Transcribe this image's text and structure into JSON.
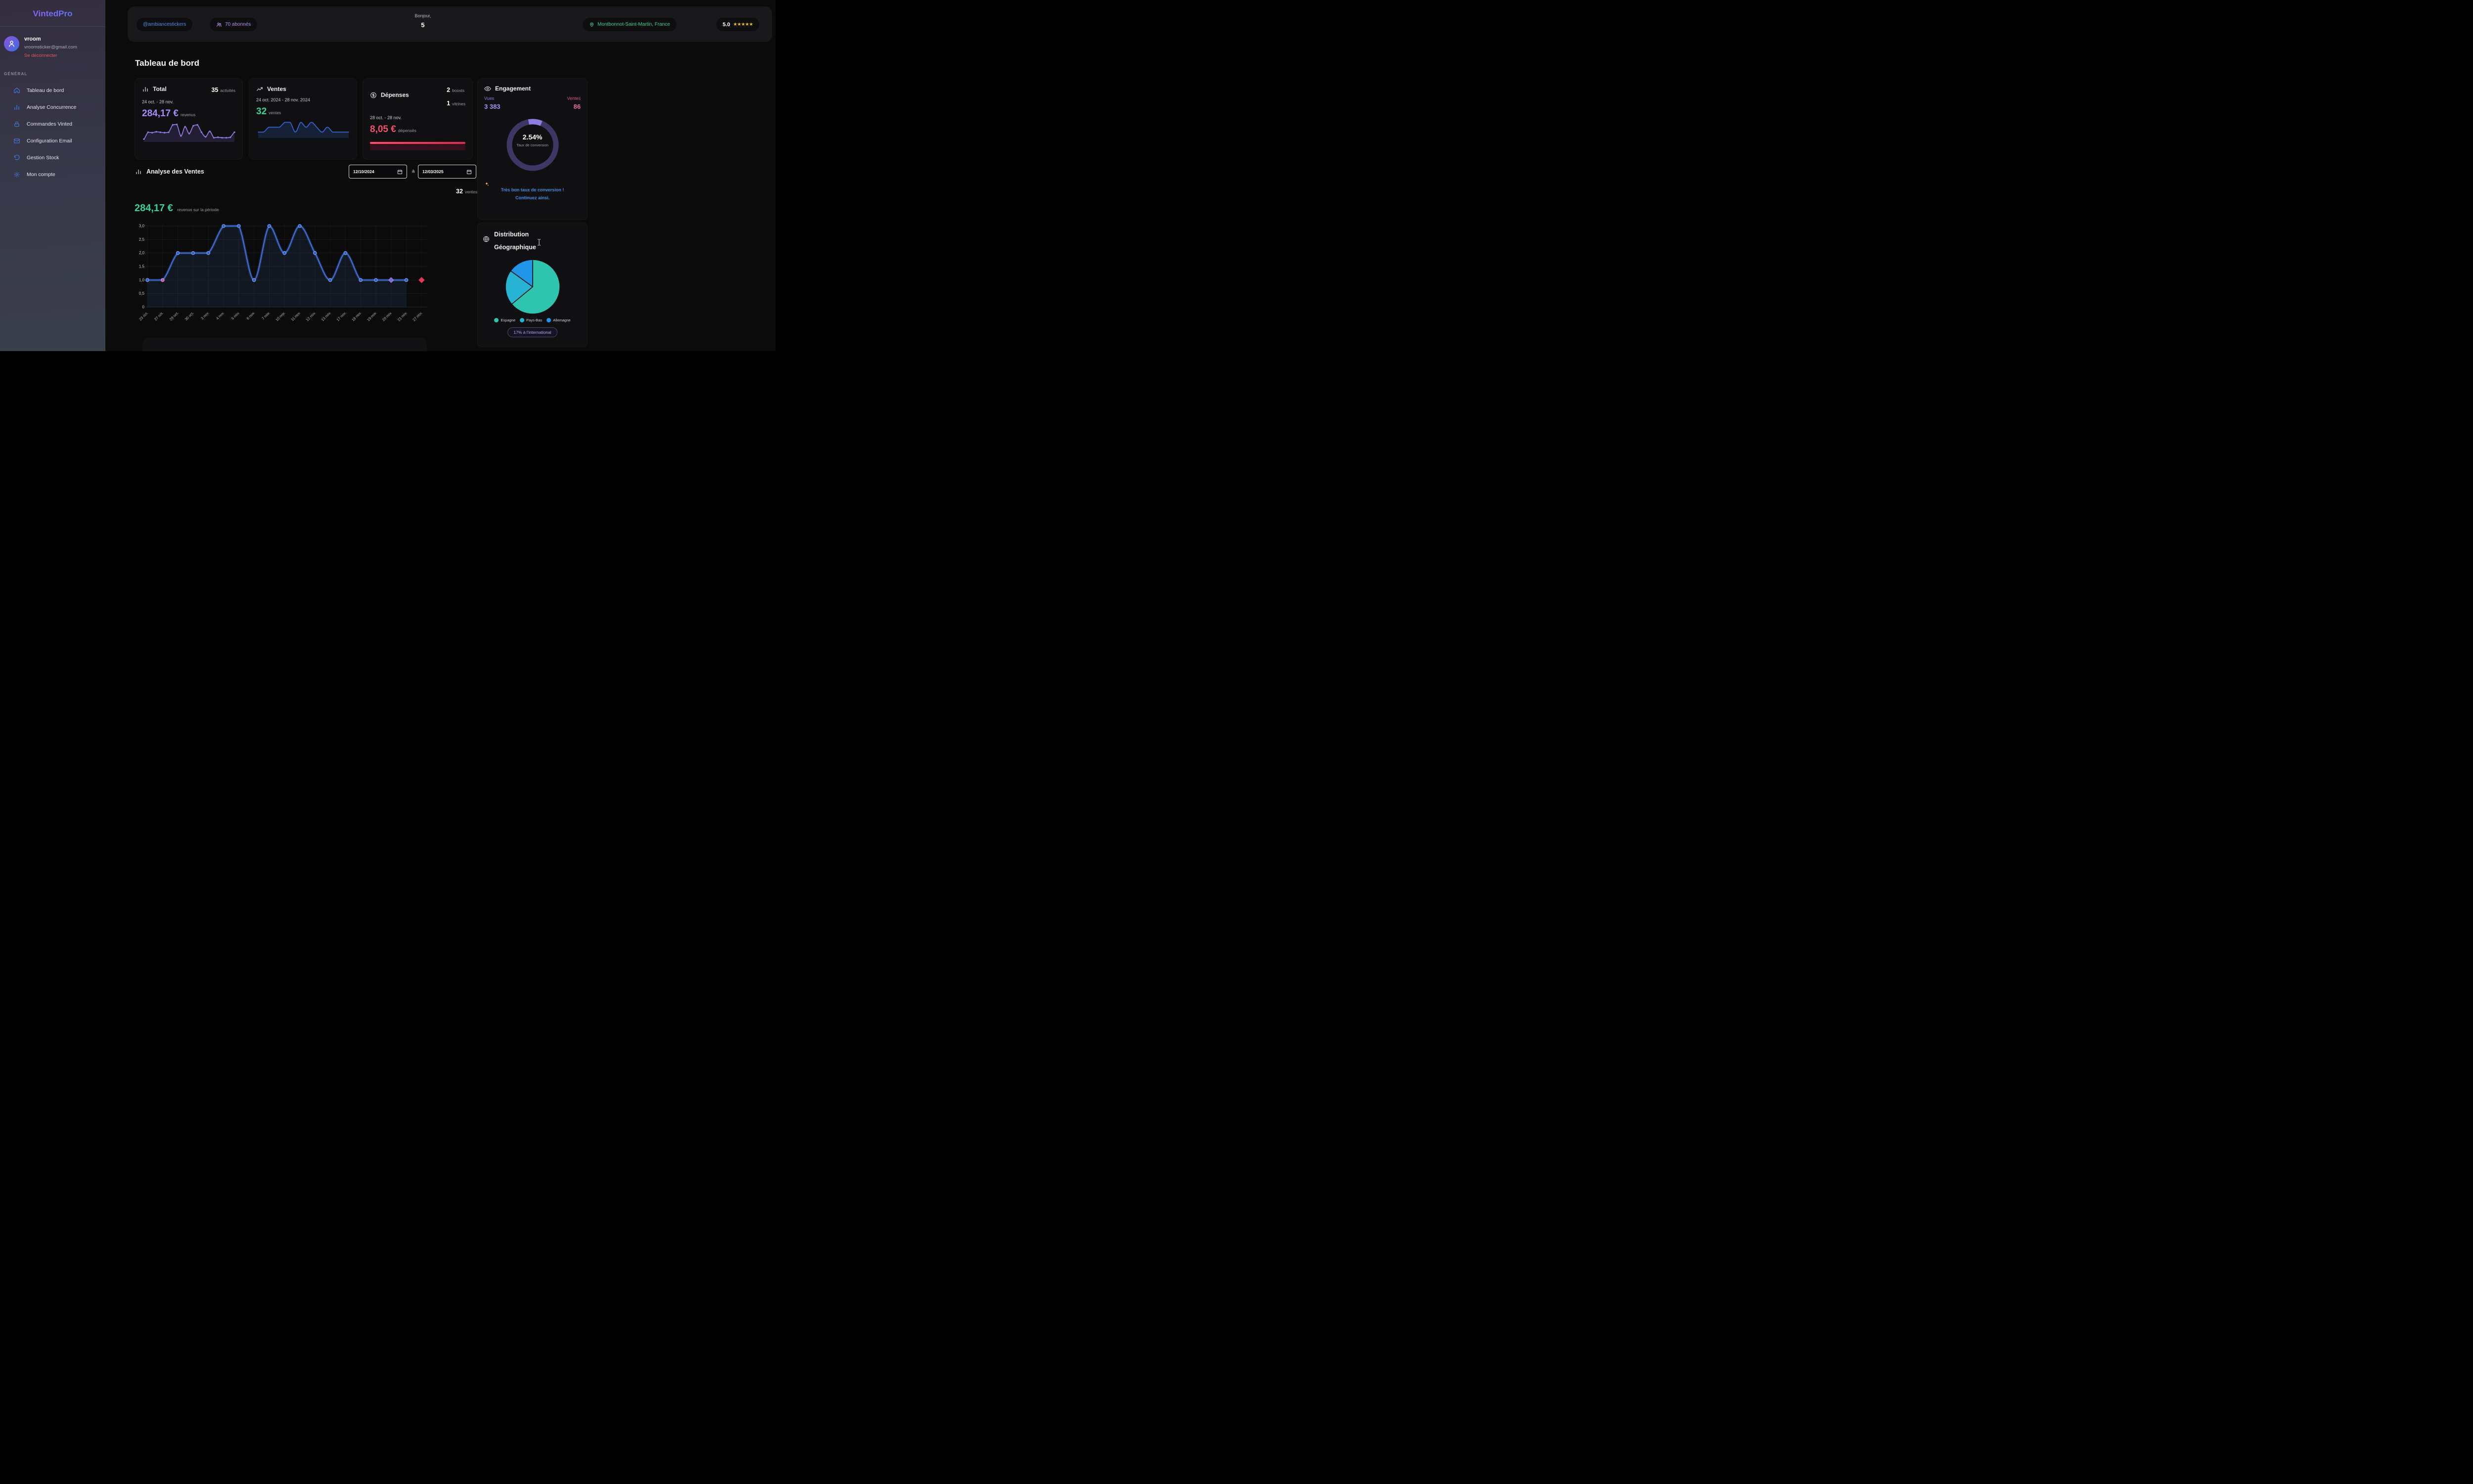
{
  "sidebar": {
    "logo": "VintedPro",
    "user": {
      "name": "vroom",
      "email": "vroomsticker@gmail.com",
      "logout_label": "Se déconnecter"
    },
    "section_label": "GÉNÉRAL",
    "items": [
      {
        "label": "Tableau de bord",
        "icon": "home"
      },
      {
        "label": "Analyse Concurrence",
        "icon": "bar-chart"
      },
      {
        "label": "Commandes Vinted",
        "icon": "lock"
      },
      {
        "label": "Configuration Email",
        "icon": "mail"
      },
      {
        "label": "Gestion Stock",
        "icon": "rotate"
      },
      {
        "label": "Mon compte",
        "icon": "gear"
      }
    ]
  },
  "header": {
    "handle": "@ambiancestickers",
    "followers": "70 abonnés",
    "greeting_label": "Bonjour,",
    "greeting_value": "5",
    "location": "Montbonnot-Saint-Martin, France",
    "rating": "5.0",
    "stars": "★★★★★"
  },
  "page_title": "Tableau de bord",
  "cards": {
    "total": {
      "title": "Total",
      "count": "35",
      "count_label": "activités",
      "period": "24 oct. - 28 nov.",
      "amount": "284,17 €",
      "amount_label": "revenus"
    },
    "ventes": {
      "title": "Ventes",
      "period": "24 oct. 2024 - 28 nov. 2024",
      "count": "32",
      "count_label": "ventes"
    },
    "depenses": {
      "title": "Dépenses",
      "boosts": "2",
      "boosts_label": "boosts",
      "vitrines": "1",
      "vitrines_label": "vitrines",
      "period": "28 oct. - 28 nov.",
      "amount": "8,05 €",
      "amount_label": "dépensés"
    },
    "engagement": {
      "title": "Engagement",
      "vues_label": "Vues",
      "vues": "3 383",
      "ventes_label": "Ventes",
      "ventes": "86",
      "rate": "2.54%",
      "rate_label": "Taux de conversion",
      "note_line1": "Très bon taux de conversion !",
      "note_line2": "Continuez ainsi."
    }
  },
  "sales_section": {
    "title": "Analyse des Ventes",
    "date_from": "12/10/2024",
    "date_separator": "à",
    "date_to": "12/03/2025",
    "count": "32",
    "count_label": "ventes",
    "amount": "284,17 €",
    "amount_label": "revenus sur la période"
  },
  "geo": {
    "title_line1": "Distribution",
    "title_line2": "Géographique",
    "legend": [
      {
        "label": "Espagne",
        "color": "#2ec4ad"
      },
      {
        "label": "Pays-Bas",
        "color": "#26b3d4"
      },
      {
        "label": "Allemagne",
        "color": "#2196e8"
      }
    ],
    "badge": "17% à l'international"
  },
  "chart_data": [
    {
      "id": "sales_line",
      "type": "line",
      "title": "Analyse des Ventes",
      "x": [
        "23 oct.",
        "27 oct.",
        "29 oct.",
        "30 oct.",
        "3 nov.",
        "4 nov.",
        "5 nov.",
        "6 nov.",
        "7 nov.",
        "10 nov.",
        "11 nov.",
        "12 nov.",
        "13 nov.",
        "17 nov.",
        "18 nov.",
        "19 nov.",
        "20 nov.",
        "21 nov.",
        "27 nov."
      ],
      "values": [
        1,
        1,
        2,
        2,
        2,
        3,
        3,
        1,
        3,
        2,
        3,
        2,
        1,
        2,
        1,
        1,
        1,
        1,
        1
      ],
      "connected_until_index": 17,
      "ylim": [
        0,
        3
      ],
      "yticks": [
        {
          "v": 0,
          "label": "0"
        },
        {
          "v": 0.5,
          "label": "0,5"
        },
        {
          "v": 1,
          "label": "1,0"
        },
        {
          "v": 1.5,
          "label": "1,5"
        },
        {
          "v": 2,
          "label": "2,0"
        },
        {
          "v": 2.5,
          "label": "2,5"
        },
        {
          "v": 3,
          "label": "3,0"
        }
      ],
      "line_color": "#3e6fd9",
      "area_color": "rgba(45,90,150,0.17)",
      "marker_fill": "#2f5fc4",
      "marker_stroke": "#7aa0ec",
      "grid": true,
      "special_markers": [
        {
          "index": 1,
          "shape": "circle",
          "color": "#b15fb5",
          "stroke": "#d98fd9"
        },
        {
          "index": 16,
          "shape": "diamond",
          "color": "#7f6ad4",
          "stroke": "#a391ee"
        },
        {
          "index": 18,
          "shape": "diamond",
          "color": "#e8365a",
          "stroke": "#e8365a",
          "detached": true
        }
      ]
    },
    {
      "id": "total_spark",
      "type": "area",
      "color": "#8d77dd",
      "area_color": "rgba(120,95,200,0.18)",
      "dots": true,
      "values": [
        0.2,
        0.95,
        0.9,
        1.0,
        0.95,
        0.9,
        0.95,
        1.75,
        1.8,
        0.55,
        1.55,
        0.8,
        1.65,
        1.75,
        0.95,
        0.45,
        1.05,
        0.35,
        0.4,
        0.35,
        0.35,
        0.4,
        0.95
      ]
    },
    {
      "id": "ventes_spark",
      "type": "area",
      "color": "#3563cc",
      "area_color": "rgba(40,80,150,0.28)",
      "dots": false,
      "values": [
        1,
        1,
        2,
        2,
        2,
        3,
        3,
        1,
        3,
        2,
        3,
        2,
        1,
        2,
        1,
        1,
        1,
        1
      ]
    },
    {
      "id": "geo_pie",
      "type": "pie",
      "title": "Distribution Géographique",
      "labels": [
        "Espagne",
        "Pays-Bas",
        "Allemagne"
      ],
      "values": [
        64,
        21,
        15
      ],
      "colors": [
        "#2ec4ad",
        "#26b3d4",
        "#2196e8"
      ],
      "legend_position": "bottom",
      "annotation": "17% à l'international"
    },
    {
      "id": "engagement_donut",
      "type": "donut",
      "value_percent": 2.54,
      "label": "2.54%",
      "sublabel": "Taux de conversion",
      "ring_color": "#3e3663",
      "segment_color": "#8b7ddf",
      "segment_start_deg": -10,
      "segment_sweep_deg": 32
    }
  ]
}
